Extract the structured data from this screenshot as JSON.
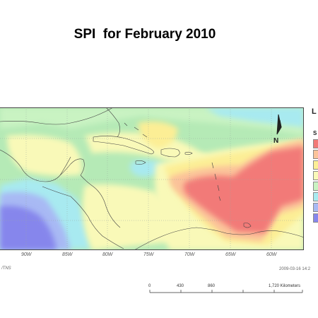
{
  "title": "SPI  for February 2010",
  "legend": {
    "title": "L",
    "subtitle": "S",
    "swatches": [
      {
        "color": "#f27a78"
      },
      {
        "color": "#fbc39a"
      },
      {
        "color": "#fcee95"
      },
      {
        "color": "#f9f9b8"
      },
      {
        "color": "#c9f3c2"
      },
      {
        "color": "#a8eaf0"
      },
      {
        "color": "#a8b9f4"
      },
      {
        "color": "#8686ec"
      }
    ]
  },
  "map": {
    "longitude_labels": [
      "90W",
      "85W",
      "80W",
      "75W",
      "70W",
      "65W",
      "60W"
    ],
    "north_arrow": "N",
    "colors": {
      "background": "#b5eab6",
      "land_outline": "#444444",
      "grid": "#9aa8a0"
    }
  },
  "footer": {
    "left_code": "/TNS",
    "timestamp": "2009-03-16  14:2",
    "scale": {
      "labels": [
        "0",
        "430",
        "860",
        "1,720 Kilometers"
      ]
    }
  }
}
